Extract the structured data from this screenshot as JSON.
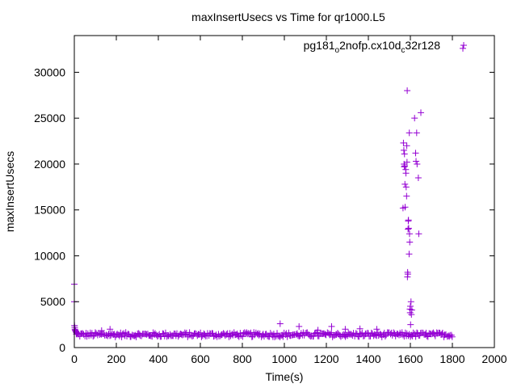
{
  "chart_data": {
    "type": "scatter",
    "title": "maxInsertUsecs vs Time for qr1000.L5",
    "xlabel": "Time(s)",
    "ylabel": "maxInsertUsecs",
    "xlim": [
      0,
      2000
    ],
    "ylim": [
      0,
      34000
    ],
    "xticks": [
      0,
      200,
      400,
      600,
      800,
      1000,
      1200,
      1400,
      1600,
      1800,
      2000
    ],
    "yticks": [
      0,
      5000,
      10000,
      15000,
      20000,
      25000,
      30000
    ],
    "grid": false,
    "legend_position": "top-right",
    "marker": "+",
    "series": [
      {
        "legend_main": "pg181",
        "legend_sub1": "o",
        "legend_mid": "2nofp.cx10d",
        "legend_sub2": "c",
        "legend_end": "32r128",
        "color": "#9400d3",
        "baseline": {
          "x_start": 10,
          "x_end": 1800,
          "step": 5,
          "y_min": 1150,
          "y_max": 1650
        },
        "ramp": [
          [
            0,
            6900
          ],
          [
            0,
            5000
          ],
          [
            1,
            2400
          ],
          [
            2,
            2200
          ],
          [
            3,
            2000
          ],
          [
            4,
            1900
          ],
          [
            6,
            1800
          ],
          [
            8,
            1700
          ],
          [
            10,
            1650
          ],
          [
            12,
            1600
          ],
          [
            15,
            1550
          ]
        ],
        "points": [
          [
            980,
            2600
          ],
          [
            1070,
            2300
          ],
          [
            1225,
            2300
          ],
          [
            1290,
            2000
          ],
          [
            1360,
            2050
          ],
          [
            1160,
            1900
          ],
          [
            1440,
            2000
          ],
          [
            170,
            2000
          ],
          [
            130,
            1850
          ],
          [
            1565,
            15200
          ],
          [
            1567,
            22300
          ],
          [
            1569,
            21500
          ],
          [
            1570,
            20000
          ],
          [
            1571,
            19700
          ],
          [
            1572,
            21100
          ],
          [
            1573,
            19800
          ],
          [
            1574,
            17800
          ],
          [
            1575,
            15300
          ],
          [
            1578,
            19400
          ],
          [
            1579,
            19000
          ],
          [
            1580,
            17500
          ],
          [
            1582,
            16500
          ],
          [
            1583,
            22000
          ],
          [
            1584,
            20200
          ],
          [
            1585,
            28000
          ],
          [
            1586,
            7700
          ],
          [
            1587,
            8200
          ],
          [
            1588,
            8000
          ],
          [
            1589,
            12900
          ],
          [
            1590,
            13800
          ],
          [
            1591,
            13900
          ],
          [
            1592,
            13000
          ],
          [
            1594,
            10200
          ],
          [
            1595,
            23400
          ],
          [
            1596,
            12400
          ],
          [
            1597,
            11500
          ],
          [
            1598,
            4200
          ],
          [
            1599,
            3800
          ],
          [
            1600,
            4500
          ],
          [
            1601,
            2500
          ],
          [
            1603,
            5000
          ],
          [
            1605,
            3600
          ],
          [
            1607,
            4100
          ],
          [
            1620,
            25000
          ],
          [
            1625,
            21200
          ],
          [
            1627,
            20300
          ],
          [
            1630,
            23400
          ],
          [
            1632,
            20000
          ],
          [
            1638,
            18500
          ],
          [
            1640,
            12400
          ],
          [
            1650,
            25600
          ],
          [
            1850,
            32600
          ]
        ]
      }
    ]
  }
}
